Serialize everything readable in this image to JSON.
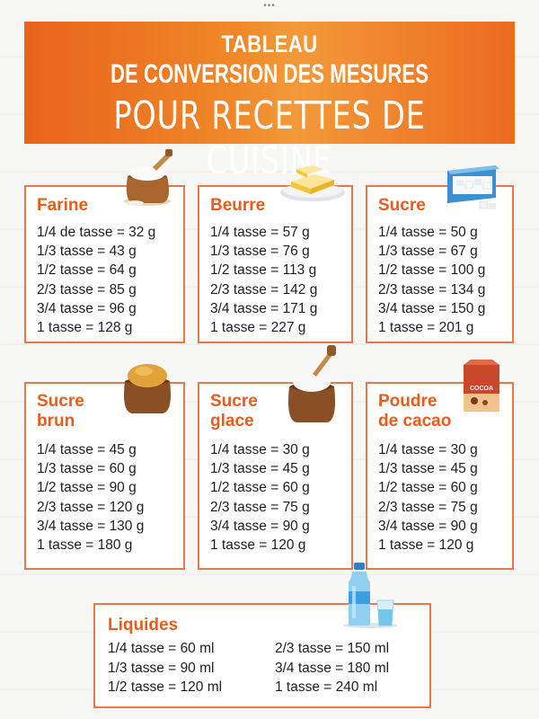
{
  "banner": {
    "line1": "TABLEAU",
    "line2": "DE CONVERSION DES MESURES",
    "line3": "POUR RECETTES DE CUISINE"
  },
  "cards": {
    "farine": {
      "title": "Farine",
      "rows": [
        "1/4 de tasse = 32 g",
        "1/3  tasse  = 43 g",
        "1/2  tasse = 64 g",
        "2/3  tasse = 85 g",
        "3/4  tasse = 96 g",
        "1  tasse = 128 g"
      ],
      "icon": "flour-sack-icon"
    },
    "beurre": {
      "title": "Beurre",
      "rows": [
        "1/4 tasse = 57 g",
        "1/3 tasse = 76 g",
        "1/2  tasse = 113 g",
        "2/3 tasse = 142 g",
        "3/4 tasse = 171 g",
        "1  tasse = 227 g"
      ],
      "icon": "butter-icon"
    },
    "sucre": {
      "title": "Sucre",
      "rows": [
        "1/4 tasse = 50 g",
        "1/3 tasse = 67 g",
        "1/2  tasse = 100 g",
        "2/3  tasse = 134 g",
        "3/4  tasse = 150 g",
        "1  tasse = 201 g"
      ],
      "icon": "sugar-box-icon"
    },
    "sucre_brun": {
      "title_line1": "Sucre",
      "title_line2": "brun",
      "rows": [
        "1/4 tasse = 45 g",
        "1/3 tasse = 60 g",
        "1/2  tasse = 90 g",
        "2/3  tasse = 120 g",
        "3/4 tasse = 130 g",
        "1  tasse = 180 g"
      ],
      "icon": "brown-sugar-sack-icon"
    },
    "sucre_glace": {
      "title_line1": "Sucre",
      "title_line2": "glace",
      "rows": [
        "1/4  tasse = 30 g",
        "1/3 tasse = 45 g",
        "1/2  tasse = 60 g",
        "2/3  tasse = 75 g",
        "3/4  tasse = 90 g",
        "1  tasse = 120 g"
      ],
      "icon": "icing-sugar-sack-icon"
    },
    "cacao": {
      "title_line1": "Poudre",
      "title_line2": "de cacao",
      "rows": [
        "1/4  tasse = 30 g",
        "1/3 tasse  = 45 g",
        "1/2  tasse  = 60 g",
        "2/3  tasse = 75 g",
        "3/4  tasse = 90 g",
        "1  tasse = 120 g"
      ],
      "icon": "cocoa-box-icon",
      "icon_text": "COCOA"
    },
    "liquides": {
      "title": "Liquides",
      "col1": [
        "1/4  tasse = 60 ml",
        "1/3  tasse = 90 ml",
        "1/2  tasse = 120 ml"
      ],
      "col2": [
        "2/3  tasse = 150 ml",
        "3/4  tasse = 180 ml",
        "1  tasse = 240 ml"
      ],
      "icon": "water-bottle-glass-icon"
    }
  },
  "colors": {
    "accent": "#ea5c1c",
    "card_border": "#e9774a",
    "banner": "#ee7a24"
  }
}
